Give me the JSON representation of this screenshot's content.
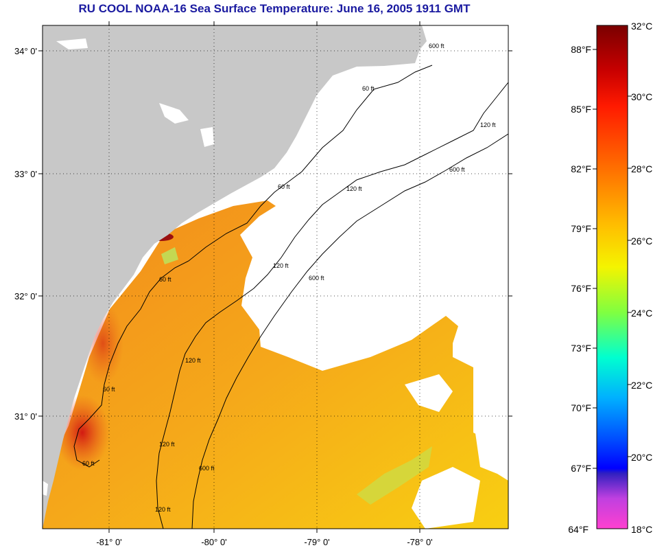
{
  "title": "RU COOL  NOAA-16  Sea Surface Temperature:  June 16, 2005 1911 GMT",
  "axes": {
    "latitudes": [
      "34° 0'",
      "33° 0'",
      "32° 0'",
      "31° 0'"
    ],
    "longitudes": [
      "-81° 0'",
      "-80° 0'",
      "-79° 0'",
      "-78° 0'"
    ]
  },
  "contour_labels": [
    "60 ft",
    "120 ft",
    "600 ft",
    "60 ft",
    "120 ft",
    "600 ft",
    "60 ft",
    "120 ft",
    "600 ft",
    "60 ft",
    "120 ft",
    "120 ft",
    "60 ft",
    "600 ft",
    "120 ft"
  ],
  "colorbar": {
    "celsius": [
      "32°C",
      "30°C",
      "28°C",
      "26°C",
      "24°C",
      "22°C",
      "20°C",
      "18°C"
    ],
    "fahrenheit": [
      "88°F",
      "85°F",
      "82°F",
      "79°F",
      "76°F",
      "73°F",
      "70°F",
      "67°F",
      "64°F"
    ]
  },
  "colors": {
    "land": "#c8c8c8",
    "title": "#1a1aa0",
    "sst_warm": "#f39a1a",
    "sst_mid": "#f7c214",
    "sst_hot": "#d82010"
  }
}
